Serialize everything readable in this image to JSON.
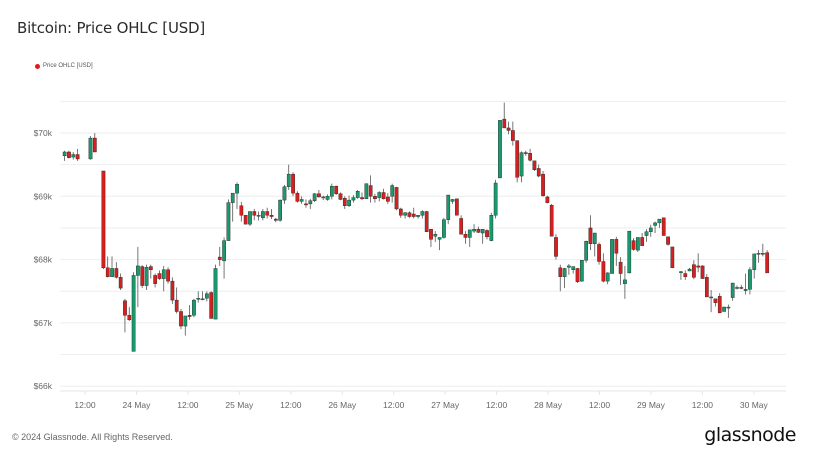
{
  "header": {
    "title": "Bitcoin: Price OHLC [USD]"
  },
  "legend": {
    "items": [
      {
        "label": "Price OHLC [USD]",
        "color": "#e01b1b"
      }
    ]
  },
  "footer": {
    "copyright": "© 2024 Glassnode. All Rights Reserved.",
    "brand": "glassnode"
  },
  "colors": {
    "up": "#1a9a6c",
    "down": "#d81f1f",
    "wick": "#555555",
    "grid": "#eeeeee",
    "axis_text": "#666666"
  },
  "chart_data": {
    "type": "candlestick",
    "title": "Bitcoin: Price OHLC [USD]",
    "xlabel": "",
    "ylabel": "",
    "ylim": [
      66000,
      70800
    ],
    "y_ticks": [
      "$66k",
      "$67k",
      "$68k",
      "$69k",
      "$70k"
    ],
    "y_tick_values": [
      66000,
      67000,
      68000,
      69000,
      70000
    ],
    "x_ticks": [
      "12:00",
      "24 May",
      "12:00",
      "25 May",
      "12:00",
      "26 May",
      "12:00",
      "27 May",
      "12:00",
      "28 May",
      "12:00",
      "29 May",
      "12:00",
      "30 May"
    ],
    "grid": true,
    "legend": [
      "Price OHLC [USD]"
    ],
    "legend_position": "top-left",
    "interval": "1h",
    "series": [
      {
        "name": "Price OHLC [USD]",
        "ohlc": []
      }
    ]
  }
}
